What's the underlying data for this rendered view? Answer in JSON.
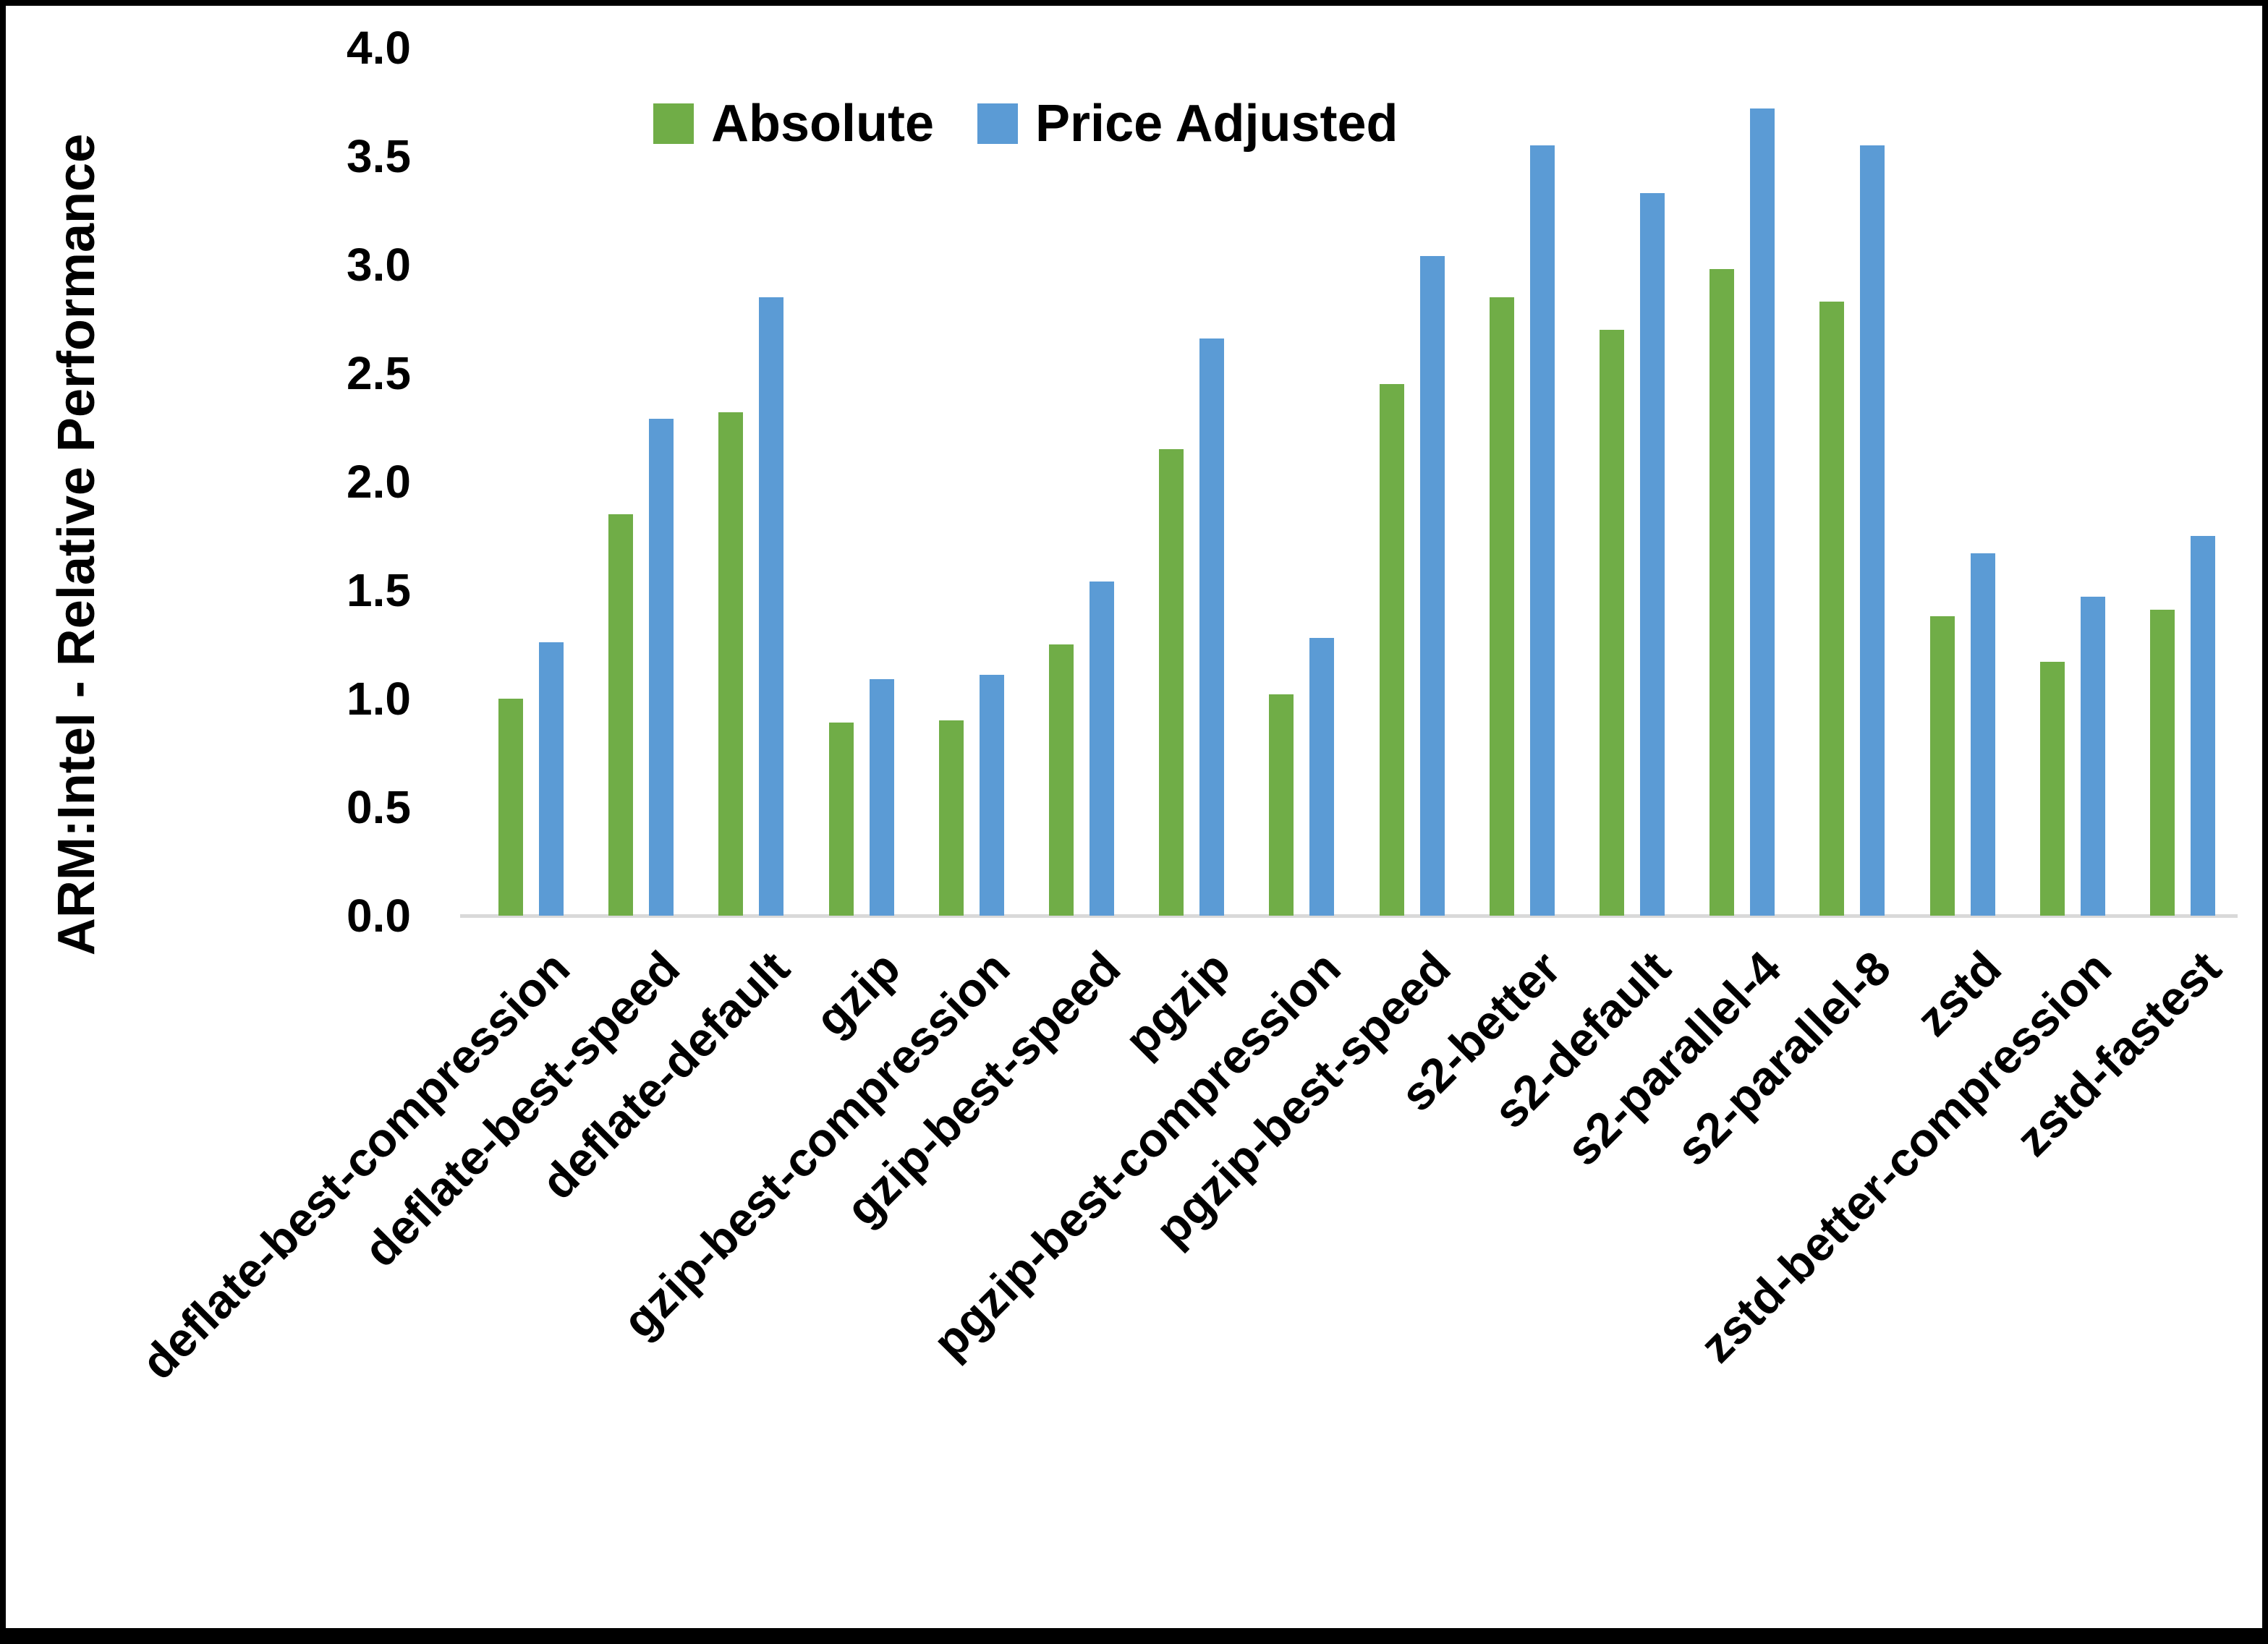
{
  "chart_data": {
    "type": "bar",
    "title": "",
    "ylabel": "ARM:Intel - Relative Performance",
    "xlabel": "",
    "ylim": [
      0.0,
      4.0
    ],
    "ytick_step": 0.5,
    "ytick_labels": [
      "0.0",
      "0.5",
      "1.0",
      "1.5",
      "2.0",
      "2.5",
      "3.0",
      "3.5",
      "4.0"
    ],
    "grid": false,
    "legend_position": "top-center",
    "axis_line_color": "#d9d9d9",
    "categories": [
      "deflate-best-compression",
      "deflate-best-speed",
      "deflate-default",
      "gzip",
      "gzip-best-compression",
      "gzip-best-speed",
      "pgzip",
      "pgzip-best-compression",
      "pgzip-best-speed",
      "s2-better",
      "s2-default",
      "s2-parallel-4",
      "s2-parallel-8",
      "zstd",
      "zstd-better-compression",
      "zstd-fastest"
    ],
    "series": [
      {
        "name": "Absolute",
        "color": "#70ad47",
        "values": [
          1.0,
          1.85,
          2.32,
          0.89,
          0.9,
          1.25,
          2.15,
          1.02,
          2.45,
          2.85,
          2.7,
          2.98,
          2.83,
          1.38,
          1.17,
          1.41
        ]
      },
      {
        "name": "Price Adjusted",
        "color": "#5b9bd5",
        "values": [
          1.26,
          2.29,
          2.85,
          1.09,
          1.11,
          1.54,
          2.66,
          1.28,
          3.04,
          3.55,
          3.33,
          3.72,
          3.55,
          1.67,
          1.47,
          1.75
        ]
      }
    ]
  }
}
